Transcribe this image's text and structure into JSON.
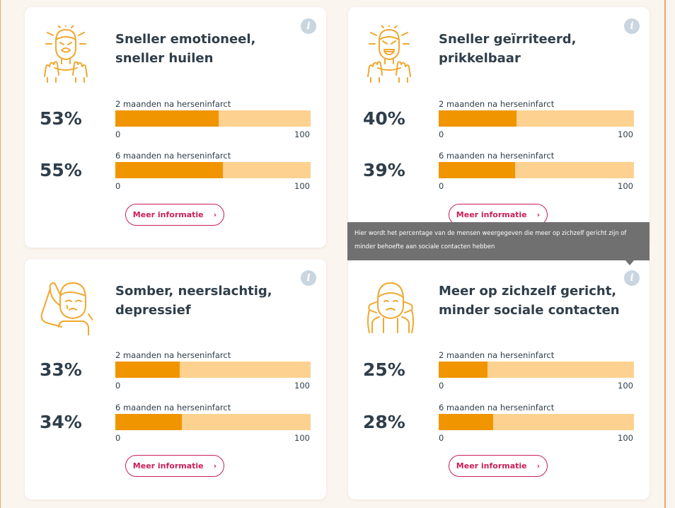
{
  "scale": {
    "min": "0",
    "max": "100"
  },
  "more_label": "Meer informatie",
  "more_chevron": "›",
  "info_glyph": "i",
  "tooltip": "Hier wordt het percentage van de mensen weergegeven die meer op zichzelf gericht zijn of minder behoefte aan sociale contacten hebben",
  "colors": {
    "accent": "#f09500",
    "track": "#fdd18f",
    "button": "#c81f5a",
    "text": "#2f3e4a",
    "icon": "#f0a830"
  },
  "cards": [
    {
      "icon": "angry-crying-person-icon",
      "title": "Sneller emotioneel, sneller huilen",
      "rows": [
        {
          "label": "2 maanden na herseninfarct",
          "pct_text": "53%",
          "value": 53
        },
        {
          "label": "6 maanden na herseninfarct",
          "pct_text": "55%",
          "value": 55
        }
      ]
    },
    {
      "icon": "irritated-person-icon",
      "title": "Sneller geïrriteerd, prikkelbaar",
      "rows": [
        {
          "label": "2 maanden na herseninfarct",
          "pct_text": "40%",
          "value": 40
        },
        {
          "label": "6 maanden na herseninfarct",
          "pct_text": "39%",
          "value": 39
        }
      ]
    },
    {
      "icon": "sad-person-icon",
      "title": "Somber, neerslachtig, depressief",
      "rows": [
        {
          "label": "2 maanden na herseninfarct",
          "pct_text": "33%",
          "value": 33
        },
        {
          "label": "6 maanden na herseninfarct",
          "pct_text": "34%",
          "value": 34
        }
      ]
    },
    {
      "icon": "withdrawn-person-icon",
      "title": "Meer op zichzelf gericht, minder sociale contacten",
      "rows": [
        {
          "label": "2 maanden na herseninfarct",
          "pct_text": "25%",
          "value": 25
        },
        {
          "label": "6 maanden na herseninfarct",
          "pct_text": "28%",
          "value": 28
        }
      ]
    }
  ]
}
